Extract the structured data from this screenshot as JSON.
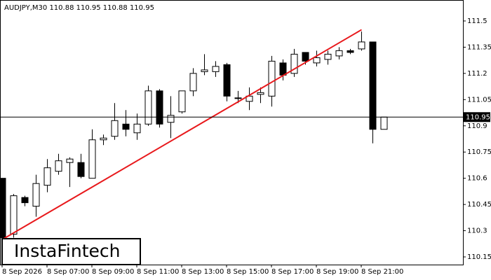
{
  "chart_data": {
    "type": "candlestick",
    "title": "AUDJPY,M30  110.88 110.95 110.88 110.95",
    "categories": [
      "8 Sep 2026",
      null,
      null,
      null,
      "8 Sep 07:00",
      null,
      null,
      null,
      "8 Sep 09:00",
      null,
      null,
      null,
      "8 Sep 11:00",
      null,
      null,
      null,
      "8 Sep 13:00",
      null,
      null,
      null,
      "8 Sep 15:00",
      null,
      null,
      null,
      "8 Sep 17:00",
      null,
      null,
      null,
      "8 Sep 19:00",
      null,
      null,
      null,
      "8 Sep 21:00",
      null,
      null
    ],
    "open": [
      110.6,
      110.28,
      110.49,
      110.44,
      110.56,
      110.64,
      110.69,
      110.69,
      110.6,
      110.82,
      110.84,
      110.91,
      110.86,
      110.91,
      111.1,
      110.92,
      110.98,
      111.1,
      111.21,
      111.21,
      111.25,
      111.06,
      111.04,
      111.08,
      111.07,
      111.26,
      111.2,
      111.32,
      111.26,
      111.28,
      111.3,
      111.33,
      111.34,
      111.38,
      110.88
    ],
    "high": [
      110.6,
      110.51,
      110.5,
      110.62,
      110.71,
      110.74,
      110.72,
      110.74,
      110.88,
      110.85,
      111.03,
      110.99,
      110.97,
      111.13,
      111.11,
      111.07,
      111.1,
      111.23,
      111.31,
      111.27,
      111.26,
      111.1,
      111.12,
      111.12,
      111.3,
      111.28,
      111.34,
      111.32,
      111.33,
      111.33,
      111.35,
      111.34,
      111.44,
      111.38,
      110.95
    ],
    "low": [
      110.24,
      110.26,
      110.44,
      110.38,
      110.52,
      110.62,
      110.55,
      110.6,
      110.6,
      110.79,
      110.82,
      110.84,
      110.82,
      110.9,
      110.89,
      110.83,
      110.97,
      111.07,
      111.19,
      111.18,
      111.04,
      111.03,
      110.99,
      111.03,
      111.01,
      111.16,
      111.18,
      111.25,
      111.24,
      111.25,
      111.28,
      111.31,
      111.33,
      110.8,
      110.88
    ],
    "close": [
      110.26,
      110.5,
      110.46,
      110.57,
      110.66,
      110.7,
      110.71,
      110.61,
      110.82,
      110.83,
      110.93,
      110.88,
      110.91,
      111.1,
      110.91,
      110.96,
      111.1,
      111.2,
      111.22,
      111.24,
      111.07,
      111.06,
      111.07,
      111.09,
      111.27,
      111.19,
      111.31,
      111.27,
      111.29,
      111.31,
      111.33,
      111.32,
      111.38,
      110.88,
      110.95
    ],
    "up_color": "#ffffff",
    "down_color": "#000000",
    "ylim": [
      110.106,
      111.62
    ],
    "yticks": [
      110.15,
      110.3,
      110.45,
      110.6,
      110.75,
      110.9,
      111.05,
      111.2,
      111.35,
      111.5
    ],
    "price_line": 110.95,
    "trend_line": {
      "start": [
        0,
        110.25
      ],
      "end": [
        32,
        111.45
      ],
      "color": "#e8191c"
    }
  },
  "logo": "InstaFintech"
}
